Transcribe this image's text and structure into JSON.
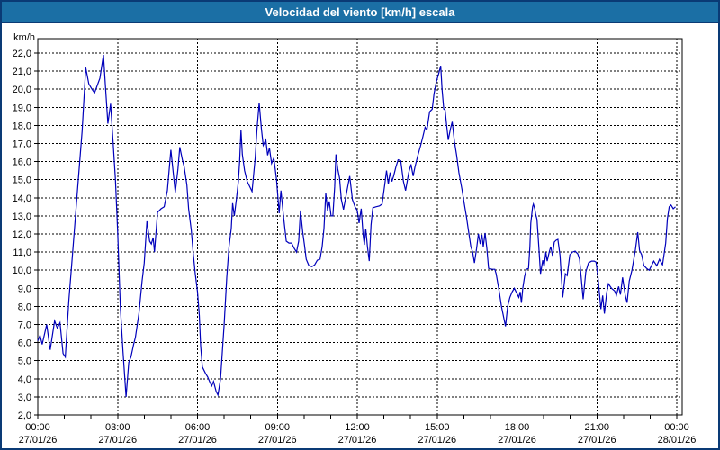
{
  "window": {
    "title": "Velocidad del viento [km/h] escala"
  },
  "colors": {
    "titlebar_bg": "#1b6fa5",
    "frame_border": "#0a3a75",
    "plot_border": "#000000",
    "grid": "#000000",
    "line": "#0000bb",
    "text": "#000000",
    "background": "#ffffff"
  },
  "chart_data": {
    "type": "line",
    "title": "Velocidad del viento [km/h] escala",
    "ylabel": "km/h",
    "unit_label": "km/h",
    "ylim": [
      2,
      22
    ],
    "xlim_minutes": [
      0,
      1440
    ],
    "grid": "dashed",
    "y_ticks": [
      {
        "value": 22,
        "label": "22,0"
      },
      {
        "value": 21,
        "label": "21,0"
      },
      {
        "value": 20,
        "label": "20,0"
      },
      {
        "value": 19,
        "label": "19,0"
      },
      {
        "value": 18,
        "label": "18,0"
      },
      {
        "value": 17,
        "label": "17,0"
      },
      {
        "value": 16,
        "label": "16,0"
      },
      {
        "value": 15,
        "label": "15,0"
      },
      {
        "value": 14,
        "label": "14,0"
      },
      {
        "value": 13,
        "label": "13,0"
      },
      {
        "value": 12,
        "label": "12,0"
      },
      {
        "value": 11,
        "label": "11,0"
      },
      {
        "value": 10,
        "label": "10,0"
      },
      {
        "value": 9,
        "label": "9,0"
      },
      {
        "value": 8,
        "label": "8,0"
      },
      {
        "value": 7,
        "label": "7,0"
      },
      {
        "value": 6,
        "label": "6,0"
      },
      {
        "value": 5,
        "label": "5,0"
      },
      {
        "value": 4,
        "label": "4,0"
      },
      {
        "value": 3,
        "label": "3,0"
      },
      {
        "value": 2,
        "label": "2,0"
      }
    ],
    "x_ticks": [
      {
        "minutes": 0,
        "time": "00:00",
        "date": "27/01/26"
      },
      {
        "minutes": 180,
        "time": "03:00",
        "date": "27/01/26"
      },
      {
        "minutes": 360,
        "time": "06:00",
        "date": "27/01/26"
      },
      {
        "minutes": 540,
        "time": "09:00",
        "date": "27/01/26"
      },
      {
        "minutes": 720,
        "time": "12:00",
        "date": "27/01/26"
      },
      {
        "minutes": 900,
        "time": "15:00",
        "date": "27/01/26"
      },
      {
        "minutes": 1080,
        "time": "18:00",
        "date": "27/01/26"
      },
      {
        "minutes": 1260,
        "time": "21:00",
        "date": "27/01/26"
      },
      {
        "minutes": 1440,
        "time": "00:00",
        "date": "28/01/26"
      }
    ],
    "minor_tick_every_minutes": 60,
    "series": [
      {
        "color": "#0000bb",
        "points": [
          [
            0,
            6.1
          ],
          [
            5,
            6.4
          ],
          [
            10,
            5.9
          ],
          [
            20,
            7.0
          ],
          [
            28,
            5.6
          ],
          [
            38,
            7.2
          ],
          [
            44,
            6.8
          ],
          [
            50,
            7.1
          ],
          [
            57,
            5.4
          ],
          [
            62,
            5.2
          ],
          [
            70,
            8.3
          ],
          [
            80,
            11.4
          ],
          [
            90,
            14.6
          ],
          [
            100,
            17.7
          ],
          [
            108,
            21.2
          ],
          [
            115,
            20.3
          ],
          [
            122,
            20.0
          ],
          [
            128,
            19.8
          ],
          [
            140,
            20.6
          ],
          [
            148,
            21.9
          ],
          [
            153,
            20.0
          ],
          [
            158,
            18.1
          ],
          [
            164,
            19.2
          ],
          [
            170,
            17.0
          ],
          [
            175,
            15.0
          ],
          [
            180,
            12.1
          ],
          [
            186,
            8.0
          ],
          [
            192,
            5.5
          ],
          [
            199,
            3.0
          ],
          [
            205,
            4.9
          ],
          [
            210,
            5.2
          ],
          [
            216,
            5.9
          ],
          [
            220,
            6.3
          ],
          [
            228,
            7.6
          ],
          [
            235,
            9.4
          ],
          [
            240,
            10.4
          ],
          [
            246,
            12.7
          ],
          [
            252,
            11.6
          ],
          [
            256,
            11.45
          ],
          [
            260,
            11.8
          ],
          [
            263,
            11.0
          ],
          [
            270,
            13.2
          ],
          [
            278,
            13.4
          ],
          [
            285,
            13.5
          ],
          [
            292,
            14.4
          ],
          [
            300,
            16.65
          ],
          [
            306,
            15.2
          ],
          [
            310,
            14.3
          ],
          [
            316,
            15.6
          ],
          [
            320,
            16.8
          ],
          [
            326,
            16.1
          ],
          [
            330,
            15.7
          ],
          [
            336,
            14.7
          ],
          [
            340,
            13.4
          ],
          [
            346,
            12.2
          ],
          [
            350,
            11.0
          ],
          [
            355,
            9.8
          ],
          [
            360,
            8.8
          ],
          [
            364,
            7.5
          ],
          [
            367,
            5.8
          ],
          [
            371,
            4.65
          ],
          [
            378,
            4.3
          ],
          [
            383,
            4.1
          ],
          [
            388,
            3.8
          ],
          [
            392,
            3.6
          ],
          [
            396,
            3.85
          ],
          [
            402,
            3.3
          ],
          [
            406,
            3.1
          ],
          [
            412,
            4.0
          ],
          [
            416,
            5.5
          ],
          [
            420,
            7.0
          ],
          [
            426,
            9.6
          ],
          [
            431,
            11.3
          ],
          [
            436,
            12.3
          ],
          [
            439,
            13.7
          ],
          [
            443,
            13.0
          ],
          [
            448,
            14.0
          ],
          [
            452,
            14.9
          ],
          [
            455,
            16.0
          ],
          [
            458,
            17.75
          ],
          [
            461,
            16.4
          ],
          [
            466,
            15.5
          ],
          [
            472,
            14.9
          ],
          [
            478,
            14.6
          ],
          [
            483,
            14.35
          ],
          [
            490,
            16.2
          ],
          [
            494,
            17.8
          ],
          [
            499,
            19.25
          ],
          [
            504,
            17.8
          ],
          [
            508,
            16.9
          ],
          [
            514,
            17.2
          ],
          [
            518,
            16.35
          ],
          [
            522,
            16.75
          ],
          [
            527,
            15.9
          ],
          [
            532,
            16.2
          ],
          [
            538,
            15.0
          ],
          [
            544,
            13.15
          ],
          [
            548,
            14.4
          ],
          [
            554,
            12.9
          ],
          [
            560,
            11.6
          ],
          [
            566,
            11.5
          ],
          [
            572,
            11.5
          ],
          [
            578,
            11.2
          ],
          [
            583,
            11.0
          ],
          [
            588,
            11.6
          ],
          [
            592,
            13.3
          ],
          [
            597,
            12.1
          ],
          [
            601,
            11.4
          ],
          [
            605,
            10.6
          ],
          [
            611,
            10.25
          ],
          [
            618,
            10.2
          ],
          [
            624,
            10.3
          ],
          [
            630,
            10.55
          ],
          [
            636,
            10.6
          ],
          [
            641,
            11.3
          ],
          [
            645,
            12.3
          ],
          [
            649,
            14.25
          ],
          [
            653,
            13.3
          ],
          [
            657,
            13.8
          ],
          [
            661,
            13.0
          ],
          [
            665,
            13.0
          ],
          [
            669,
            14.6
          ],
          [
            672,
            16.4
          ],
          [
            676,
            15.6
          ],
          [
            680,
            15.1
          ],
          [
            684,
            13.9
          ],
          [
            689,
            13.35
          ],
          [
            696,
            14.3
          ],
          [
            703,
            15.2
          ],
          [
            709,
            13.9
          ],
          [
            715,
            13.5
          ],
          [
            720,
            13.3
          ],
          [
            724,
            12.6
          ],
          [
            729,
            13.4
          ],
          [
            733,
            12.0
          ],
          [
            736,
            11.4
          ],
          [
            739,
            12.3
          ],
          [
            743,
            11.3
          ],
          [
            747,
            10.5
          ],
          [
            751,
            12.5
          ],
          [
            755,
            13.45
          ],
          [
            762,
            13.5
          ],
          [
            770,
            13.55
          ],
          [
            776,
            13.65
          ],
          [
            782,
            14.75
          ],
          [
            786,
            15.5
          ],
          [
            790,
            14.75
          ],
          [
            794,
            15.4
          ],
          [
            798,
            14.9
          ],
          [
            802,
            15.2
          ],
          [
            807,
            15.7
          ],
          [
            812,
            16.1
          ],
          [
            818,
            16.05
          ],
          [
            824,
            14.9
          ],
          [
            829,
            14.4
          ],
          [
            836,
            15.4
          ],
          [
            841,
            15.85
          ],
          [
            846,
            15.2
          ],
          [
            850,
            15.7
          ],
          [
            856,
            16.3
          ],
          [
            863,
            16.9
          ],
          [
            868,
            17.4
          ],
          [
            873,
            17.9
          ],
          [
            877,
            17.75
          ],
          [
            883,
            18.75
          ],
          [
            889,
            18.9
          ],
          [
            893,
            19.75
          ],
          [
            898,
            20.4
          ],
          [
            904,
            20.9
          ],
          [
            908,
            21.3
          ],
          [
            911,
            20.0
          ],
          [
            915,
            18.9
          ],
          [
            918,
            18.85
          ],
          [
            921,
            18.1
          ],
          [
            925,
            17.2
          ],
          [
            930,
            17.8
          ],
          [
            934,
            18.2
          ],
          [
            939,
            17.1
          ],
          [
            944,
            16.35
          ],
          [
            949,
            15.4
          ],
          [
            956,
            14.45
          ],
          [
            961,
            13.7
          ],
          [
            966,
            12.95
          ],
          [
            971,
            12.1
          ],
          [
            976,
            11.3
          ],
          [
            980,
            11.0
          ],
          [
            984,
            10.4
          ],
          [
            989,
            11.2
          ],
          [
            993,
            12.0
          ],
          [
            997,
            11.45
          ],
          [
            1001,
            11.95
          ],
          [
            1004,
            11.3
          ],
          [
            1008,
            12.05
          ],
          [
            1012,
            11.2
          ],
          [
            1016,
            10.1
          ],
          [
            1024,
            10.05
          ],
          [
            1030,
            10.05
          ],
          [
            1033,
            9.8
          ],
          [
            1040,
            8.8
          ],
          [
            1045,
            8.0
          ],
          [
            1054,
            6.9
          ],
          [
            1059,
            8.0
          ],
          [
            1064,
            8.5
          ],
          [
            1069,
            8.8
          ],
          [
            1074,
            9.0
          ],
          [
            1080,
            8.7
          ],
          [
            1084,
            8.5
          ],
          [
            1087,
            8.8
          ],
          [
            1090,
            8.2
          ],
          [
            1093,
            9.0
          ],
          [
            1097,
            9.65
          ],
          [
            1101,
            10.05
          ],
          [
            1106,
            10.1
          ],
          [
            1109,
            11.3
          ],
          [
            1111,
            12.6
          ],
          [
            1115,
            13.5
          ],
          [
            1117,
            13.65
          ],
          [
            1120,
            13.4
          ],
          [
            1122,
            13.1
          ],
          [
            1125,
            12.8
          ],
          [
            1129,
            11.3
          ],
          [
            1133,
            9.8
          ],
          [
            1138,
            10.55
          ],
          [
            1141,
            10.2
          ],
          [
            1145,
            11.0
          ],
          [
            1148,
            10.5
          ],
          [
            1153,
            11.05
          ],
          [
            1156,
            11.3
          ],
          [
            1160,
            10.8
          ],
          [
            1164,
            11.55
          ],
          [
            1168,
            11.65
          ],
          [
            1172,
            11.7
          ],
          [
            1177,
            10.8
          ],
          [
            1180,
            9.6
          ],
          [
            1183,
            8.5
          ],
          [
            1189,
            9.8
          ],
          [
            1193,
            9.7
          ],
          [
            1199,
            10.85
          ],
          [
            1205,
            11.0
          ],
          [
            1211,
            11.05
          ],
          [
            1217,
            10.9
          ],
          [
            1221,
            10.6
          ],
          [
            1225,
            9.5
          ],
          [
            1229,
            8.4
          ],
          [
            1235,
            9.9
          ],
          [
            1241,
            10.4
          ],
          [
            1248,
            10.5
          ],
          [
            1254,
            10.5
          ],
          [
            1258,
            10.45
          ],
          [
            1262,
            9.75
          ],
          [
            1269,
            7.85
          ],
          [
            1273,
            8.6
          ],
          [
            1277,
            7.6
          ],
          [
            1282,
            8.75
          ],
          [
            1286,
            9.25
          ],
          [
            1293,
            9.0
          ],
          [
            1300,
            8.85
          ],
          [
            1304,
            8.6
          ],
          [
            1309,
            9.1
          ],
          [
            1313,
            8.65
          ],
          [
            1318,
            9.6
          ],
          [
            1324,
            8.6
          ],
          [
            1328,
            8.2
          ],
          [
            1333,
            9.4
          ],
          [
            1339,
            10.0
          ],
          [
            1347,
            11.15
          ],
          [
            1352,
            12.1
          ],
          [
            1356,
            11.1
          ],
          [
            1361,
            10.85
          ],
          [
            1366,
            10.25
          ],
          [
            1372,
            10.1
          ],
          [
            1378,
            10.0
          ],
          [
            1388,
            10.5
          ],
          [
            1395,
            10.25
          ],
          [
            1401,
            10.6
          ],
          [
            1408,
            10.3
          ],
          [
            1415,
            11.5
          ],
          [
            1419,
            12.85
          ],
          [
            1423,
            13.5
          ],
          [
            1427,
            13.6
          ],
          [
            1432,
            13.4
          ],
          [
            1437,
            13.5
          ]
        ]
      }
    ]
  }
}
